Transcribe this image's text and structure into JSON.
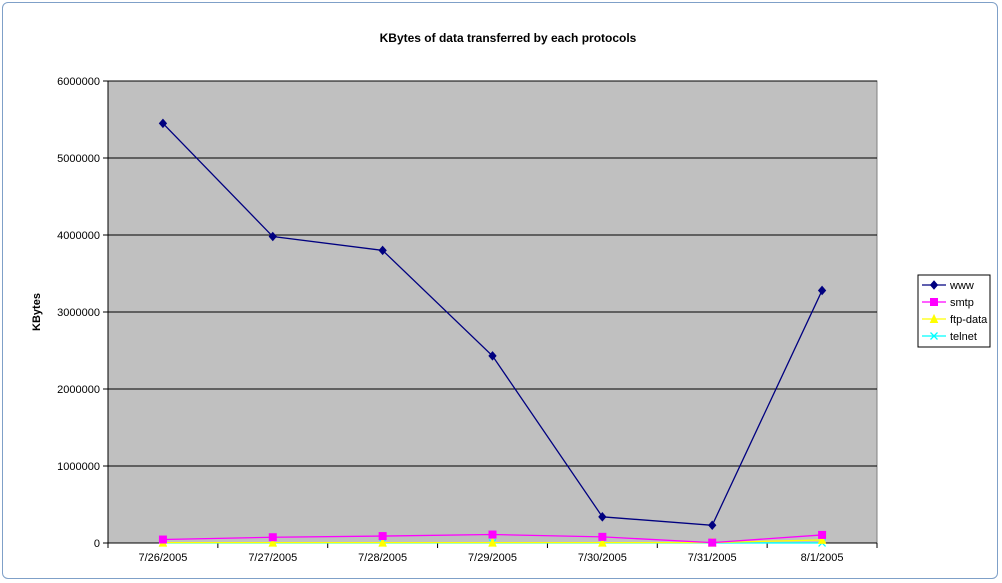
{
  "chart_data": {
    "type": "line",
    "title": "KBytes of data transferred by each protocols",
    "xlabel": "",
    "ylabel": "KBytes",
    "categories": [
      "7/26/2005",
      "7/27/2005",
      "7/28/2005",
      "7/29/2005",
      "7/30/2005",
      "7/31/2005",
      "8/1/2005"
    ],
    "ylim": [
      0,
      6000000
    ],
    "yticks": [
      0,
      1000000,
      2000000,
      3000000,
      4000000,
      5000000,
      6000000
    ],
    "grid": true,
    "legend_position": "right",
    "plot_background": "#c0c0c0",
    "series": [
      {
        "name": "www",
        "color": "#000080",
        "marker": "diamond",
        "values": [
          5450000,
          3980000,
          3800000,
          2430000,
          340000,
          230000,
          3280000
        ]
      },
      {
        "name": "smtp",
        "color": "#ff00ff",
        "marker": "square",
        "values": [
          45000,
          75000,
          90000,
          110000,
          80000,
          5000,
          105000
        ]
      },
      {
        "name": "ftp-data",
        "color": "#ffff00",
        "marker": "triangle",
        "values": [
          5000,
          5000,
          5000,
          5000,
          5000,
          5000,
          40000
        ]
      },
      {
        "name": "telnet",
        "color": "#00ffff",
        "marker": "x",
        "values": [
          1000,
          1000,
          1000,
          1000,
          1000,
          1000,
          1000
        ]
      }
    ]
  }
}
